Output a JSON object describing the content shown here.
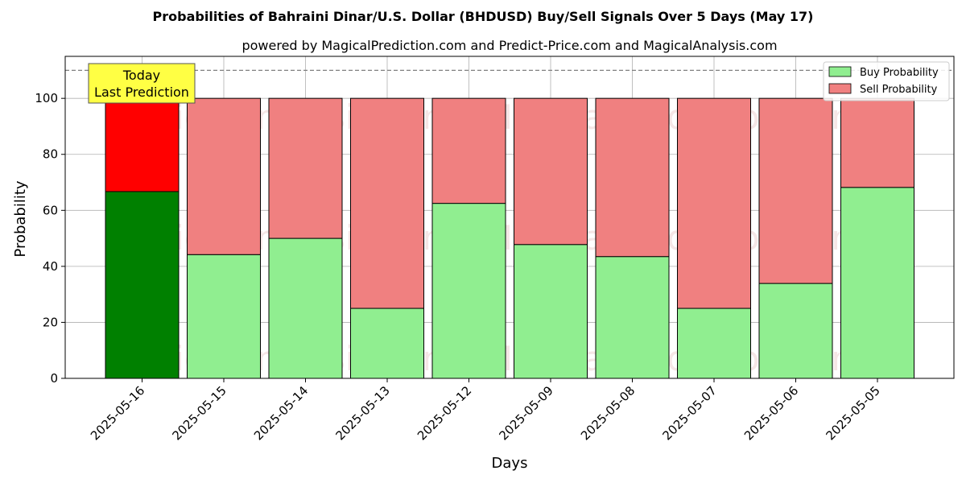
{
  "chart_data": {
    "type": "bar",
    "stacked": true,
    "title": "Probabilities of Bahraini Dinar/U.S. Dollar (BHDUSD) Buy/Sell Signals Over 5 Days (May 17)",
    "subtitle": "powered by MagicalPrediction.com and Predict-Price.com and MagicalAnalysis.com",
    "xlabel": "Days",
    "ylabel": "Probability",
    "ylim": [
      0,
      115
    ],
    "yticks": [
      0,
      20,
      40,
      60,
      80,
      100
    ],
    "reference_line": 110,
    "grid": true,
    "legend_position": "top-right",
    "categories": [
      "2025-05-16",
      "2025-05-15",
      "2025-05-14",
      "2025-05-13",
      "2025-05-12",
      "2025-05-09",
      "2025-05-08",
      "2025-05-07",
      "2025-05-06",
      "2025-05-05"
    ],
    "series": [
      {
        "name": "Buy Probability",
        "values": [
          66.7,
          44.2,
          50.0,
          25.0,
          62.5,
          47.8,
          43.5,
          25.0,
          33.9,
          68.2
        ]
      },
      {
        "name": "Sell Probability",
        "values": [
          33.3,
          55.8,
          50.0,
          75.0,
          37.5,
          52.2,
          56.5,
          75.0,
          66.1,
          31.8
        ]
      }
    ],
    "colors": {
      "buy": "#90ee90",
      "sell": "#f08080",
      "buy_highlight": "#008000",
      "sell_highlight": "#ff0000",
      "annotation_bg": "#ffff44"
    },
    "annotation": {
      "line1": "Today",
      "line2": "Last Prediction"
    },
    "watermarks": [
      "MagicalAnalysis.com",
      "MagicalPrediction.com"
    ]
  }
}
